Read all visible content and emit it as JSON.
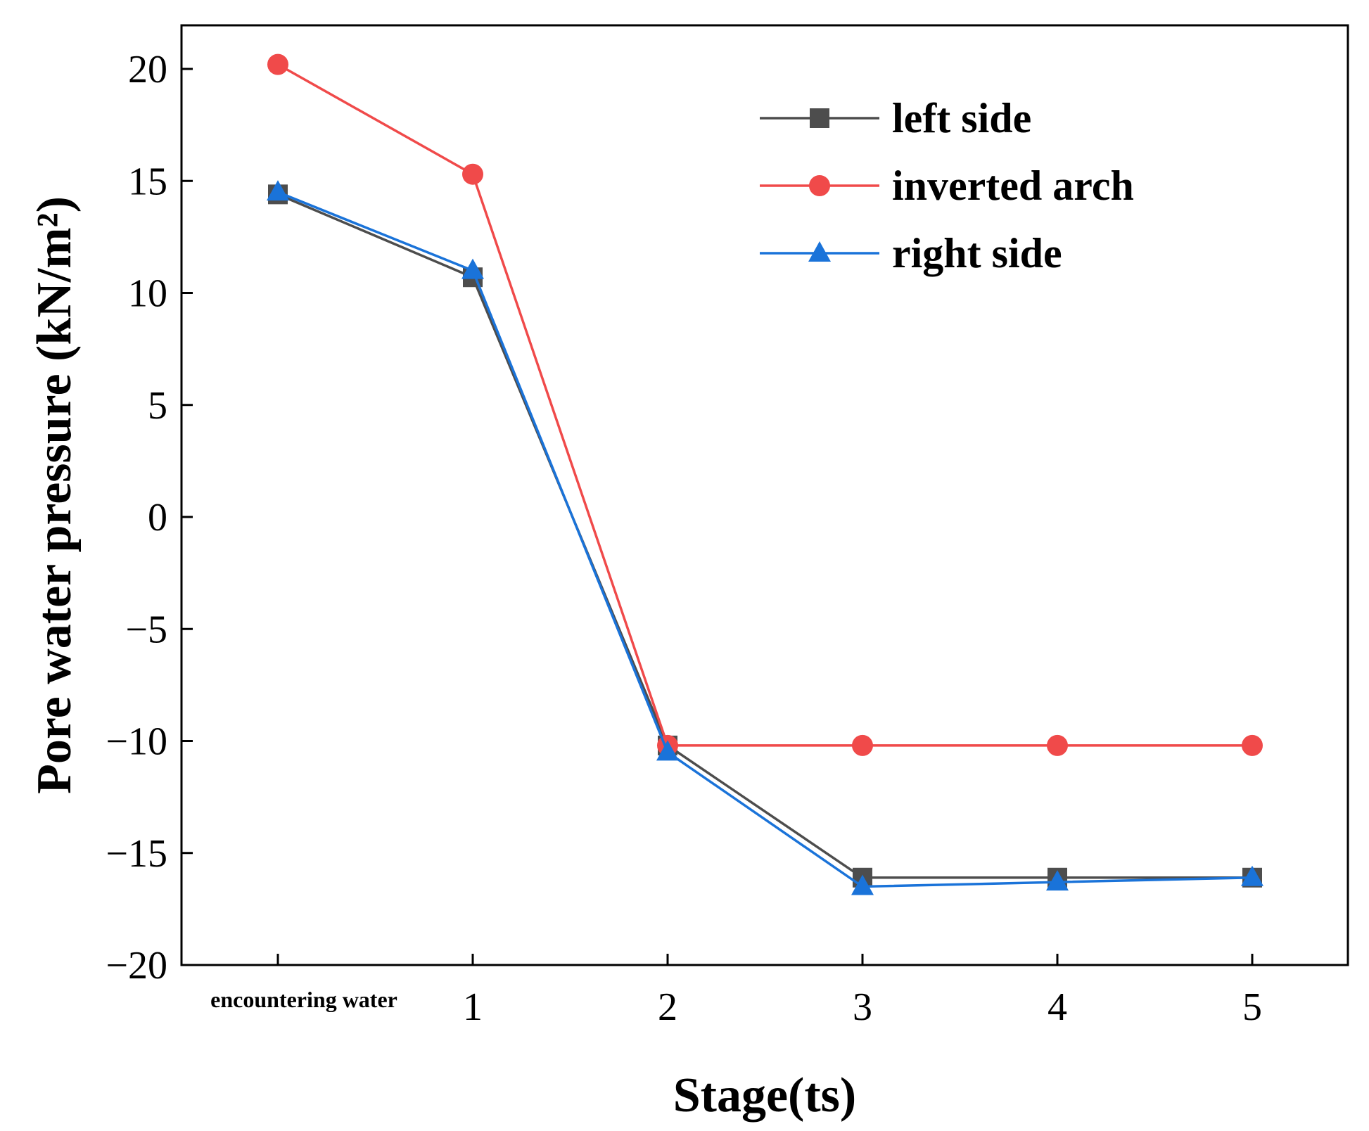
{
  "chart_data": {
    "type": "line",
    "title": "",
    "xlabel": "Stage(ts)",
    "ylabel": "Pore water pressure (kN/m²)",
    "categories": [
      "encountering water",
      "1",
      "2",
      "3",
      "4",
      "5"
    ],
    "ylim": [
      -20,
      22
    ],
    "yticks": [
      20,
      15,
      10,
      5,
      0,
      -5,
      -10,
      -15,
      -20
    ],
    "ytick_labels": [
      "20",
      "15",
      "10",
      "5",
      "0",
      "−5",
      "−10",
      "−15",
      "−20"
    ],
    "grid": false,
    "legend_position": "top-right",
    "series": [
      {
        "name": "left side",
        "color": "#4d4d4d",
        "marker": "square",
        "values": [
          14.4,
          10.7,
          -10.2,
          -16.1,
          -16.1,
          -16.1
        ]
      },
      {
        "name": "inverted arch",
        "color": "#f04a4a",
        "marker": "circle",
        "values": [
          20.2,
          15.3,
          -10.2,
          -10.2,
          -10.2,
          -10.2
        ]
      },
      {
        "name": "right side",
        "color": "#1a73d9",
        "marker": "triangle",
        "values": [
          14.5,
          11.0,
          -10.5,
          -16.5,
          -16.3,
          -16.1
        ]
      }
    ]
  }
}
